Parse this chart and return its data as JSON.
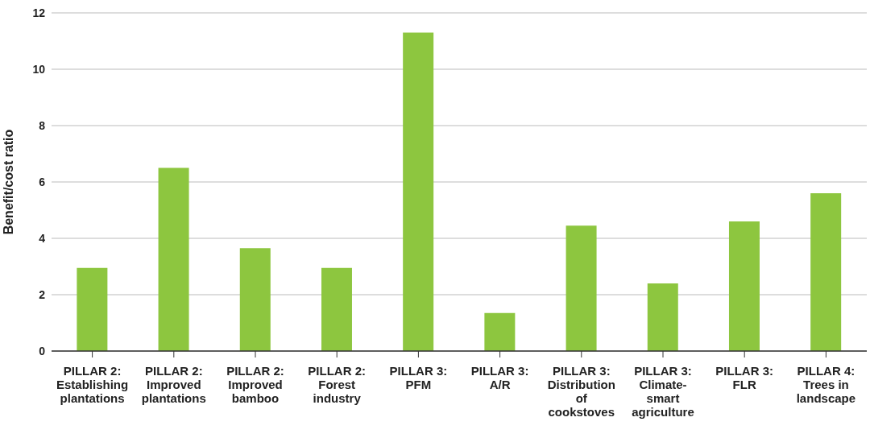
{
  "chart_data": {
    "type": "bar",
    "ylabel": "Benefit/cost ratio",
    "categories": [
      "PILLAR 2:\nEstablishing\nplantations",
      "PILLAR 2:\nImproved\nplantations",
      "PILLAR 2:\nImproved\nbamboo",
      "PILLAR 2:\nForest\nindustry",
      "PILLAR 3:\nPFM",
      "PILLAR 3:\nA/R",
      "PILLAR 3:\nDistribution\nof\ncookstoves",
      "PILLAR 3:\nClimate-\nsmart\nagriculture",
      "PILLAR 3:\nFLR",
      "PILLAR 4:\nTrees in\nlandscape"
    ],
    "values": [
      2.95,
      6.5,
      3.65,
      2.95,
      11.3,
      1.35,
      4.45,
      2.4,
      4.6,
      5.6
    ],
    "color": "#8dc63f",
    "ylim": [
      0,
      12
    ],
    "yticks": [
      0,
      2,
      4,
      6,
      8,
      10,
      12
    ],
    "grid": "y"
  }
}
